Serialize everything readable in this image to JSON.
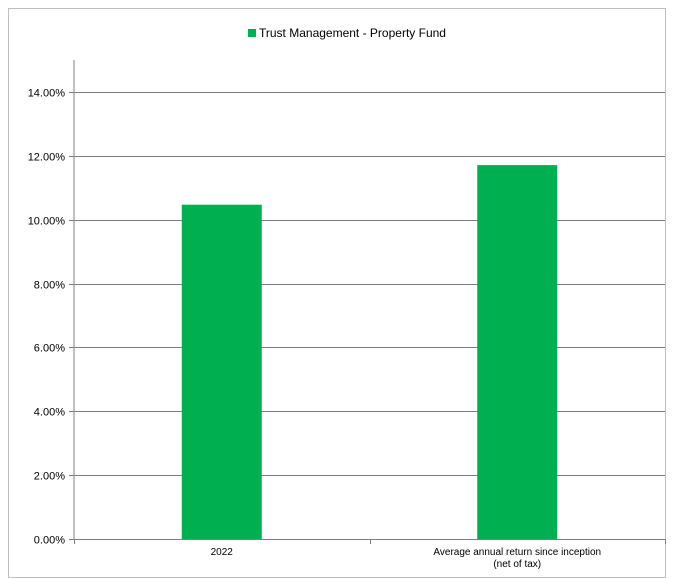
{
  "chart_data": {
    "type": "bar",
    "categories": [
      "2022",
      "Average annual return since inception (net of tax)"
    ],
    "category_lines": [
      [
        "2022"
      ],
      [
        "Average annual return since inception",
        "(net of tax)"
      ]
    ],
    "series": [
      {
        "name": "Trust Management - Property Fund",
        "color": "#00b050",
        "values": [
          10.47,
          11.71
        ]
      }
    ],
    "ylim": [
      0,
      14
    ],
    "yticks": [
      0,
      2,
      4,
      6,
      8,
      10,
      12,
      14
    ],
    "ytick_labels": [
      "0.00%",
      "2.00%",
      "4.00%",
      "6.00%",
      "8.00%",
      "10.00%",
      "12.00%",
      "14.00%"
    ],
    "legend_position": "top-center",
    "grid": true
  }
}
